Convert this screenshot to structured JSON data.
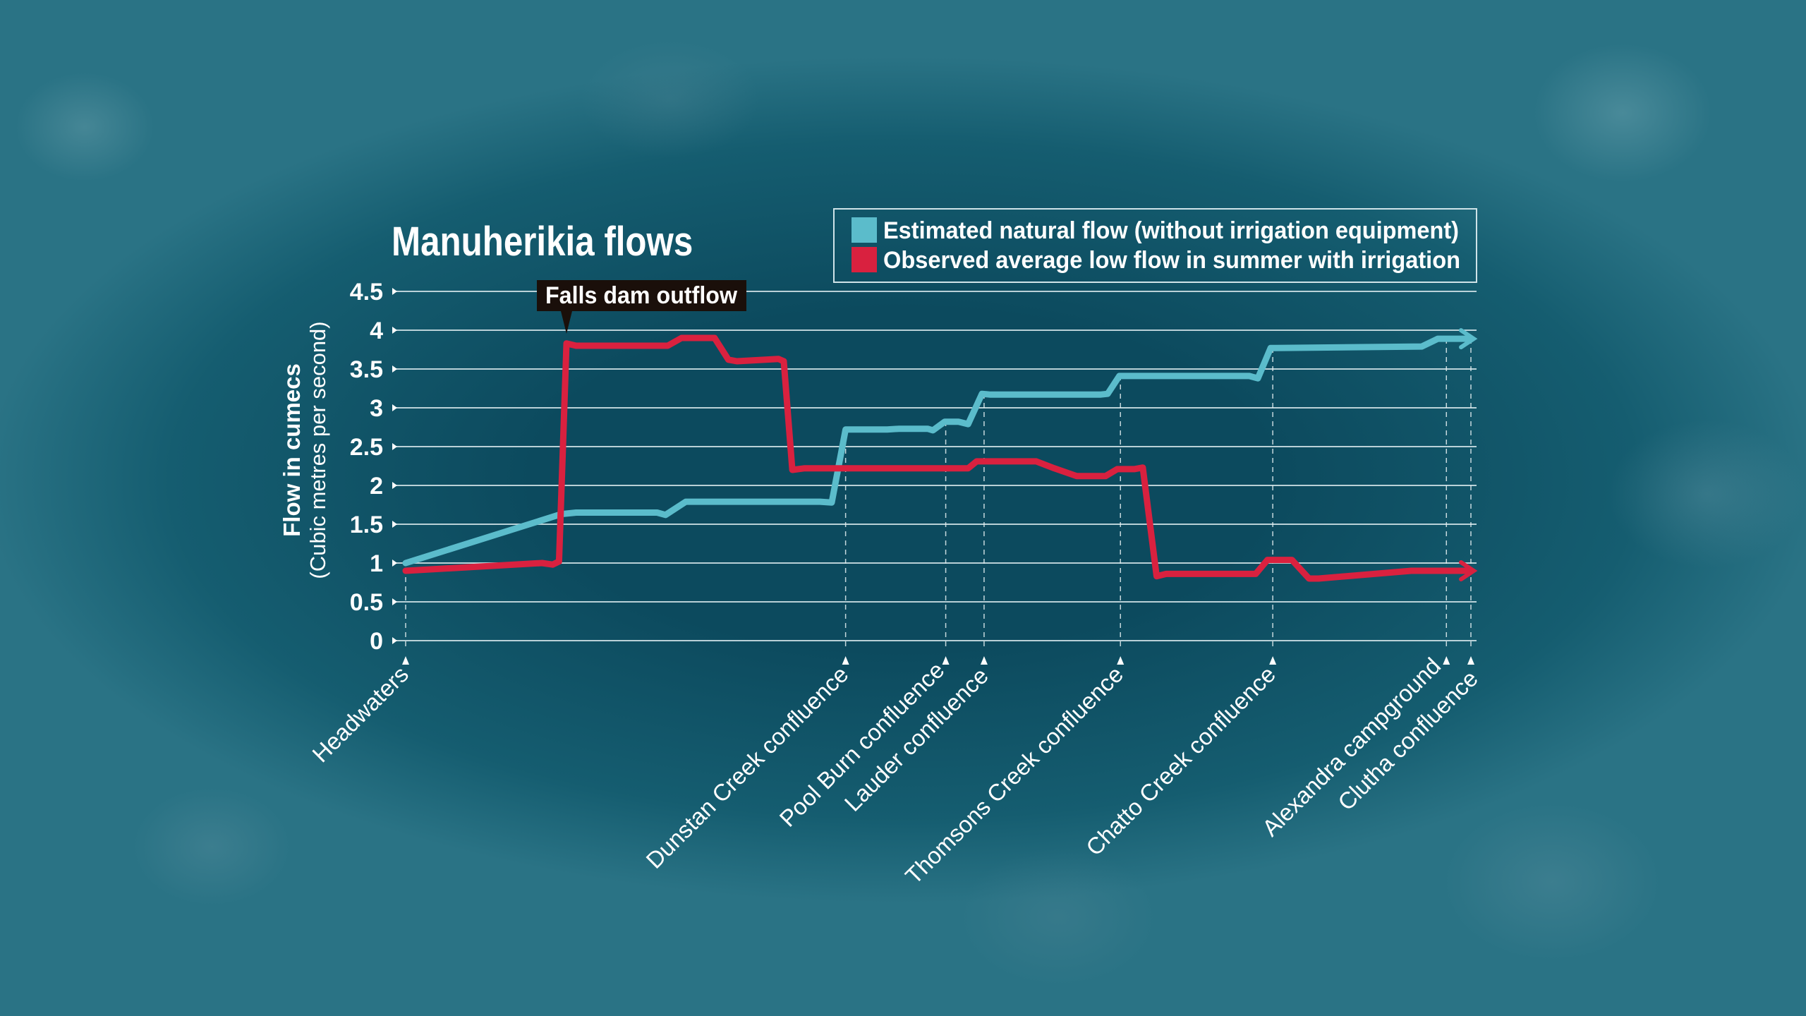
{
  "chart_data": {
    "type": "line",
    "title": "Manuherikia flows",
    "ylabel": "Flow in cumecs",
    "ylabel_sub": "(Cubic metres per second)",
    "xlabel": "",
    "ylim": [
      0,
      4.5
    ],
    "yticks": [
      "0",
      "0.5",
      "1",
      "1.5",
      "2",
      "2.5",
      "3",
      "3.5",
      "4",
      "4.5"
    ],
    "grid": true,
    "legend_placement": "top-right",
    "x_unit": "relative distance along river (0 = Headwaters, 100 = Clutha confluence)",
    "locations": [
      {
        "label": "Headwaters",
        "x": 0
      },
      {
        "label": "Dunstan Creek confluence",
        "x": 41.3
      },
      {
        "label": "Pool Burn confluence",
        "x": 50.7
      },
      {
        "label": "Lauder confluence",
        "x": 54.3
      },
      {
        "label": "Thomsons Creek confluence",
        "x": 67.1
      },
      {
        "label": "Chatto Creek confluence",
        "x": 81.4
      },
      {
        "label": "Alexandra campground",
        "x": 97.7
      },
      {
        "label": "Clutha confluence",
        "x": 100
      }
    ],
    "annotation": {
      "label": "Falls dam outflow",
      "x": 15.1,
      "y": 3.83
    },
    "series": [
      {
        "name": "Estimated natural flow (without irrigation equipment)",
        "color": "#5bbccb",
        "points": [
          [
            0,
            1.0
          ],
          [
            14.6,
            1.63
          ],
          [
            16.0,
            1.65
          ],
          [
            23.6,
            1.65
          ],
          [
            24.4,
            1.62
          ],
          [
            26.3,
            1.79
          ],
          [
            38.9,
            1.79
          ],
          [
            40.0,
            1.78
          ],
          [
            41.3,
            2.72
          ],
          [
            45.2,
            2.72
          ],
          [
            46.3,
            2.73
          ],
          [
            49.0,
            2.73
          ],
          [
            49.5,
            2.71
          ],
          [
            50.6,
            2.82
          ],
          [
            51.9,
            2.82
          ],
          [
            52.8,
            2.79
          ],
          [
            54.1,
            3.18
          ],
          [
            54.9,
            3.17
          ],
          [
            65.2,
            3.17
          ],
          [
            65.9,
            3.18
          ],
          [
            67.0,
            3.41
          ],
          [
            79.2,
            3.41
          ],
          [
            80.0,
            3.38
          ],
          [
            81.2,
            3.77
          ],
          [
            81.7,
            3.77
          ],
          [
            95.4,
            3.79
          ],
          [
            96.9,
            3.89
          ],
          [
            100,
            3.89
          ]
        ]
      },
      {
        "name": "Observed average low flow in summer with irrigation",
        "color": "#d9213f",
        "points": [
          [
            0,
            0.9
          ],
          [
            12.8,
            1.0
          ],
          [
            13.8,
            0.98
          ],
          [
            14.4,
            1.02
          ],
          [
            15.1,
            3.83
          ],
          [
            16.0,
            3.8
          ],
          [
            24.6,
            3.8
          ],
          [
            25.9,
            3.9
          ],
          [
            29.0,
            3.9
          ],
          [
            30.3,
            3.62
          ],
          [
            31.1,
            3.6
          ],
          [
            35.0,
            3.63
          ],
          [
            35.5,
            3.6
          ],
          [
            36.3,
            2.2
          ],
          [
            37.4,
            2.22
          ],
          [
            52.8,
            2.22
          ],
          [
            53.6,
            2.31
          ],
          [
            59.2,
            2.31
          ],
          [
            60.9,
            2.22
          ],
          [
            63.0,
            2.12
          ],
          [
            65.7,
            2.12
          ],
          [
            66.8,
            2.21
          ],
          [
            68.4,
            2.21
          ],
          [
            69.2,
            2.23
          ],
          [
            70.5,
            0.83
          ],
          [
            71.4,
            0.86
          ],
          [
            79.8,
            0.86
          ],
          [
            80.9,
            1.04
          ],
          [
            83.2,
            1.04
          ],
          [
            84.8,
            0.8
          ],
          [
            85.7,
            0.8
          ],
          [
            94.4,
            0.9
          ],
          [
            100,
            0.9
          ]
        ]
      }
    ]
  }
}
